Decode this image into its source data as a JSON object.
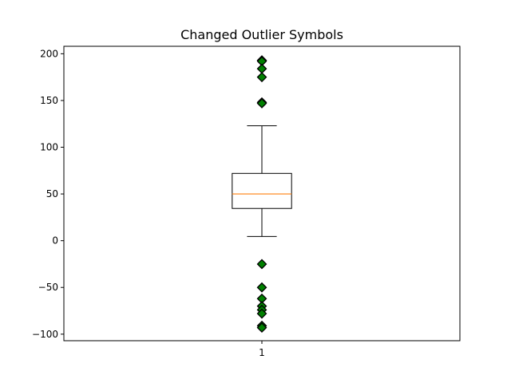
{
  "chart_data": {
    "type": "box",
    "title": "Changed Outlier Symbols",
    "xlabel": "",
    "ylabel": "",
    "ylim": [
      -107,
      208
    ],
    "xlim": [
      0.5,
      1.5
    ],
    "y_ticks": [
      -100,
      -50,
      0,
      50,
      100,
      150,
      200
    ],
    "x_ticks": [
      1
    ],
    "x_tick_labels": [
      "1"
    ],
    "grid": false,
    "boxes": [
      {
        "position": 1,
        "whisker_low": 4.5,
        "q1": 34.5,
        "median": 50,
        "q3": 72,
        "whisker_high": 123,
        "outliers": [
          193,
          192,
          184,
          175,
          148,
          147,
          -25,
          -50,
          -62,
          -70,
          -74,
          -78,
          -91,
          -93
        ]
      }
    ],
    "colors": {
      "box": "#000000",
      "median": "#ff7f0e",
      "outlier_fill": "#008000",
      "outlier_edge": "#000000"
    }
  }
}
